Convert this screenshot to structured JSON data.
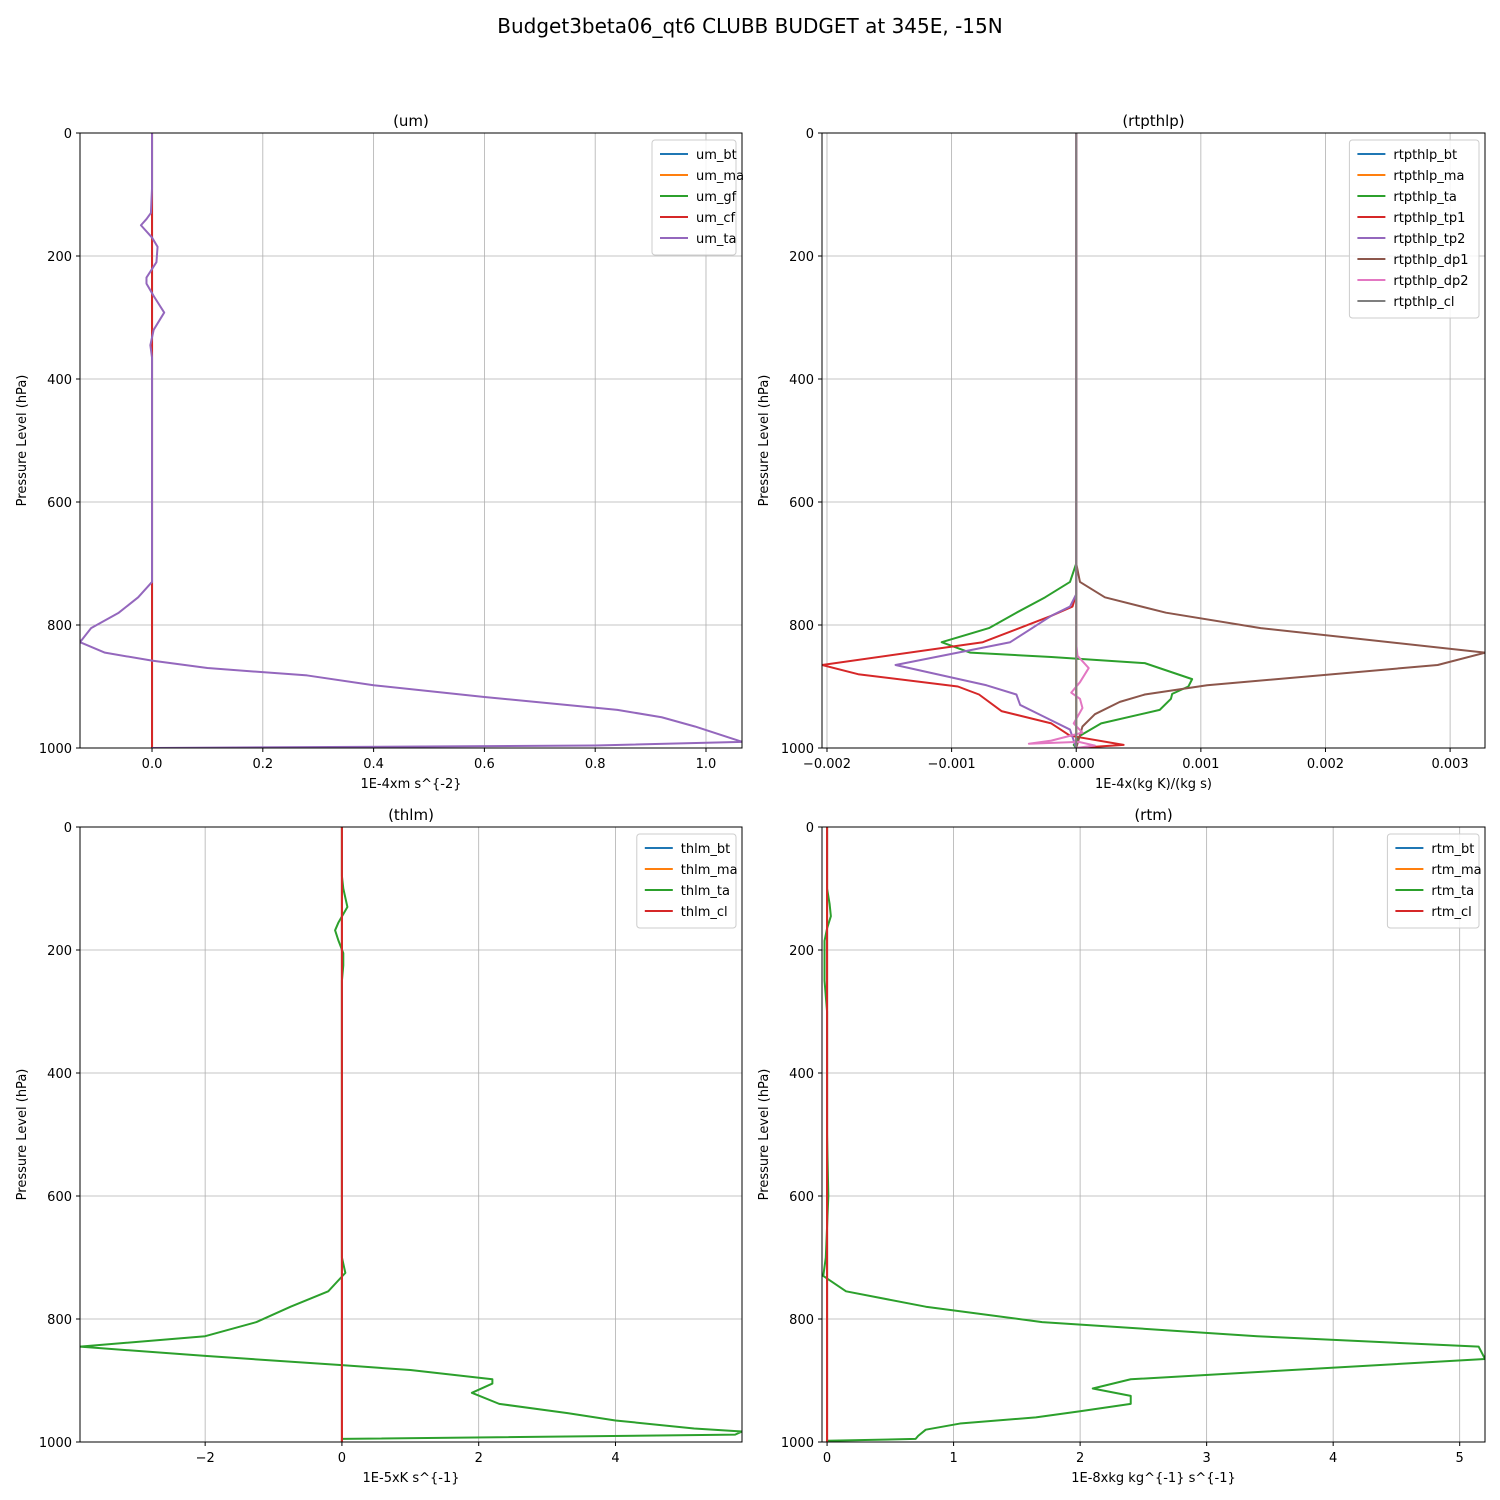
{
  "figure": {
    "title": "Budget3beta06_qt6 CLUBB BUDGET at 345E, -15N"
  },
  "colors": {
    "C0": "#1f77b4",
    "C1": "#ff7f0e",
    "C2": "#2ca02c",
    "C3": "#d62728",
    "C4": "#9467bd",
    "C5": "#8c564b",
    "C6": "#e377c2",
    "C7": "#7f7f7f"
  },
  "chart_data": [
    {
      "type": "line",
      "title": "(um)",
      "xlabel": "1E-4xm s^{-2}",
      "ylabel": "Pressure Level (hPa)",
      "xlim": [
        -0.13,
        1.065
      ],
      "ylim": [
        1000,
        0
      ],
      "y_inverted": true,
      "grid": true,
      "legend": "top-right",
      "xticks": [
        0.0,
        0.2,
        0.4,
        0.6,
        0.8,
        1.0
      ],
      "xtick_labels": [
        "0.0",
        "0.2",
        "0.4",
        "0.6",
        "0.8",
        "1.0"
      ],
      "yticks": [
        0,
        200,
        400,
        600,
        800,
        1000
      ],
      "ytick_labels": [
        "0",
        "200",
        "400",
        "600",
        "800",
        "1000"
      ],
      "series": [
        {
          "name": "um_bt",
          "color": "C0",
          "points": [
            [
              0,
              0
            ],
            [
              0,
              1000
            ]
          ]
        },
        {
          "name": "um_ma",
          "color": "C1",
          "points": [
            [
              0,
              0
            ],
            [
              0,
              1000
            ]
          ]
        },
        {
          "name": "um_gf",
          "color": "C2",
          "points": [
            [
              0,
              0
            ],
            [
              0,
              1000
            ]
          ]
        },
        {
          "name": "um_cf",
          "color": "C3",
          "points": [
            [
              0,
              0
            ],
            [
              0,
              1000
            ]
          ]
        },
        {
          "name": "um_ta",
          "color": "C4",
          "points": [
            [
              0,
              0
            ],
            [
              0,
              90
            ],
            [
              -0.002,
              130
            ],
            [
              -0.01,
              140
            ],
            [
              -0.02,
              150
            ],
            [
              0,
              170
            ],
            [
              0.01,
              185
            ],
            [
              0.008,
              210
            ],
            [
              -0.01,
              235
            ],
            [
              -0.01,
              245
            ],
            [
              0.003,
              265
            ],
            [
              0.022,
              292
            ],
            [
              0.003,
              320
            ],
            [
              -0.003,
              345
            ],
            [
              0,
              365
            ],
            [
              0,
              390
            ],
            [
              0,
              500
            ],
            [
              0,
              600
            ],
            [
              0,
              700
            ],
            [
              0,
              730
            ],
            [
              -0.025,
              755
            ],
            [
              -0.06,
              780
            ],
            [
              -0.11,
              805
            ],
            [
              -0.13,
              828
            ],
            [
              -0.085,
              845
            ],
            [
              0,
              858
            ],
            [
              0.1,
              870
            ],
            [
              0.28,
              882
            ],
            [
              0.4,
              898
            ],
            [
              0.6,
              917
            ],
            [
              0.84,
              938
            ],
            [
              0.92,
              950
            ],
            [
              0.98,
              965
            ],
            [
              1.065,
              990
            ],
            [
              0.8,
              996
            ],
            [
              0,
              1000
            ]
          ]
        }
      ]
    },
    {
      "type": "line",
      "title": "(rtpthlp)",
      "xlabel": "1E-4x(kg K)/(kg s)",
      "ylabel": "Pressure Level (hPa)",
      "xlim": [
        -0.00204,
        0.00328
      ],
      "ylim": [
        1000,
        0
      ],
      "y_inverted": true,
      "grid": true,
      "legend": "top-right",
      "xticks": [
        -0.002,
        -0.001,
        0.0,
        0.001,
        0.002,
        0.003
      ],
      "xtick_labels": [
        "−0.002",
        "−0.001",
        "0.000",
        "0.001",
        "0.002",
        "0.003"
      ],
      "yticks": [
        0,
        200,
        400,
        600,
        800,
        1000
      ],
      "ytick_labels": [
        "0",
        "200",
        "400",
        "600",
        "800",
        "1000"
      ],
      "series": [
        {
          "name": "rtpthlp_bt",
          "color": "C0",
          "points": [
            [
              0,
              0
            ],
            [
              0,
              1000
            ]
          ]
        },
        {
          "name": "rtpthlp_ma",
          "color": "C1",
          "points": [
            [
              0,
              0
            ],
            [
              0,
              1000
            ]
          ]
        },
        {
          "name": "rtpthlp_ta",
          "color": "C2",
          "points": [
            [
              0,
              0
            ],
            [
              0,
              700
            ],
            [
              -5e-05,
              730
            ],
            [
              -0.00025,
              755
            ],
            [
              -0.00048,
              780
            ],
            [
              -0.0007,
              805
            ],
            [
              -0.00108,
              828
            ],
            [
              -0.00085,
              845
            ],
            [
              -0.0002,
              852
            ],
            [
              0.00055,
              862
            ],
            [
              0.00093,
              888
            ],
            [
              0.0009,
              900
            ],
            [
              0.00077,
              912
            ],
            [
              0.00076,
              920
            ],
            [
              0.00067,
              938
            ],
            [
              0.0002,
              960
            ],
            [
              3e-05,
              980
            ],
            [
              -2e-05,
              995
            ],
            [
              0,
              1000
            ]
          ]
        },
        {
          "name": "rtpthlp_tp1",
          "color": "C3",
          "points": [
            [
              0,
              0
            ],
            [
              0,
              750
            ],
            [
              -3e-05,
              770
            ],
            [
              -0.0002,
              785
            ],
            [
              -0.00075,
              828
            ],
            [
              -0.00204,
              865
            ],
            [
              -0.00175,
              880
            ],
            [
              -0.00095,
              900
            ],
            [
              -0.00078,
              913
            ],
            [
              -0.0006,
              940
            ],
            [
              -0.0002,
              960
            ],
            [
              -5e-05,
              980
            ],
            [
              0.00038,
              995
            ],
            [
              0,
              1000
            ]
          ]
        },
        {
          "name": "rtpthlp_tp2",
          "color": "C4",
          "points": [
            [
              0,
              0
            ],
            [
              0,
              750
            ],
            [
              -5e-05,
              770
            ],
            [
              -0.0002,
              785
            ],
            [
              -0.00053,
              828
            ],
            [
              -0.00145,
              865
            ],
            [
              -0.00072,
              898
            ],
            [
              -0.00048,
              913
            ],
            [
              -0.00045,
              930
            ],
            [
              -0.00025,
              950
            ],
            [
              -5e-05,
              970
            ],
            [
              0,
              1000
            ]
          ]
        },
        {
          "name": "rtpthlp_dp1",
          "color": "C5",
          "points": [
            [
              0,
              0
            ],
            [
              0,
              700
            ],
            [
              3e-05,
              730
            ],
            [
              0.00023,
              755
            ],
            [
              0.00072,
              780
            ],
            [
              0.00148,
              805
            ],
            [
              0.00328,
              845
            ],
            [
              0.0029,
              865
            ],
            [
              0.00105,
              898
            ],
            [
              0.00055,
              913
            ],
            [
              0.00035,
              925
            ],
            [
              0.00015,
              945
            ],
            [
              5e-05,
              965
            ],
            [
              0,
              1000
            ]
          ]
        },
        {
          "name": "rtpthlp_dp2",
          "color": "C6",
          "points": [
            [
              0,
              0
            ],
            [
              0,
              830
            ],
            [
              1e-05,
              850
            ],
            [
              0.0001,
              870
            ],
            [
              3e-05,
              893
            ],
            [
              -4e-05,
              910
            ],
            [
              3e-05,
              920
            ],
            [
              5e-05,
              935
            ],
            [
              -2e-05,
              960
            ],
            [
              5e-05,
              975
            ],
            [
              -0.0002,
              988
            ],
            [
              -0.00038,
              993
            ],
            [
              2e-05,
              990
            ],
            [
              0.00015,
              996
            ],
            [
              0,
              1000
            ]
          ]
        },
        {
          "name": "rtpthlp_cl",
          "color": "C7",
          "points": [
            [
              0,
              0
            ],
            [
              0,
              1000
            ]
          ]
        }
      ]
    },
    {
      "type": "line",
      "title": "(thlm)",
      "xlabel": "1E-5xK s^{-1}",
      "ylabel": "Pressure Level (hPa)",
      "xlim": [
        -3.83,
        5.85
      ],
      "ylim": [
        1000,
        0
      ],
      "y_inverted": true,
      "grid": true,
      "legend": "top-right",
      "xticks": [
        -2,
        0,
        2,
        4
      ],
      "xtick_labels": [
        "−2",
        "0",
        "2",
        "4"
      ],
      "yticks": [
        0,
        200,
        400,
        600,
        800,
        1000
      ],
      "ytick_labels": [
        "0",
        "200",
        "400",
        "600",
        "800",
        "1000"
      ],
      "series": [
        {
          "name": "thlm_bt",
          "color": "C0",
          "points": [
            [
              0,
              0
            ],
            [
              0,
              1000
            ]
          ]
        },
        {
          "name": "thlm_ma",
          "color": "C1",
          "points": [
            [
              0,
              0
            ],
            [
              0,
              1000
            ]
          ]
        },
        {
          "name": "thlm_ta",
          "color": "C2",
          "points": [
            [
              0,
              0
            ],
            [
              0,
              80
            ],
            [
              0.02,
              100
            ],
            [
              0.08,
              130
            ],
            [
              -0.05,
              155
            ],
            [
              -0.1,
              168
            ],
            [
              -0.05,
              185
            ],
            [
              0.02,
              205
            ],
            [
              0.02,
              225
            ],
            [
              0,
              250
            ],
            [
              0,
              300
            ],
            [
              0,
              400
            ],
            [
              0,
              500
            ],
            [
              0,
              600
            ],
            [
              0,
              700
            ],
            [
              0.05,
              725
            ],
            [
              -0.2,
              755
            ],
            [
              -0.75,
              780
            ],
            [
              -1.25,
              805
            ],
            [
              -2.0,
              828
            ],
            [
              -3.83,
              845
            ],
            [
              -2.0,
              860
            ],
            [
              0,
              875
            ],
            [
              1.0,
              883
            ],
            [
              2.2,
              898
            ],
            [
              2.2,
              905
            ],
            [
              1.9,
              920
            ],
            [
              2.3,
              938
            ],
            [
              3.3,
              953
            ],
            [
              4.0,
              965
            ],
            [
              5.15,
              978
            ],
            [
              5.85,
              983
            ],
            [
              5.75,
              988
            ],
            [
              0,
              995
            ],
            [
              0,
              1000
            ]
          ]
        },
        {
          "name": "thlm_cl",
          "color": "C3",
          "points": [
            [
              0,
              0
            ],
            [
              0,
              1000
            ]
          ]
        }
      ]
    },
    {
      "type": "line",
      "title": "(rtm)",
      "xlabel": "1E-8xkg kg^{-1} s^{-1}",
      "ylabel": "Pressure Level (hPa)",
      "xlim": [
        -0.04,
        5.2
      ],
      "ylim": [
        1000,
        0
      ],
      "y_inverted": true,
      "grid": true,
      "legend": "top-right",
      "xticks": [
        0,
        1,
        2,
        3,
        4,
        5
      ],
      "xtick_labels": [
        "0",
        "1",
        "2",
        "3",
        "4",
        "5"
      ],
      "yticks": [
        0,
        200,
        400,
        600,
        800,
        1000
      ],
      "ytick_labels": [
        "0",
        "200",
        "400",
        "600",
        "800",
        "1000"
      ],
      "series": [
        {
          "name": "rtm_bt",
          "color": "C0",
          "points": [
            [
              0,
              0
            ],
            [
              0,
              1000
            ]
          ]
        },
        {
          "name": "rtm_ma",
          "color": "C1",
          "points": [
            [
              0,
              0
            ],
            [
              0,
              1000
            ]
          ]
        },
        {
          "name": "rtm_ta",
          "color": "C2",
          "points": [
            [
              0,
              0
            ],
            [
              0,
              100
            ],
            [
              0.02,
              125
            ],
            [
              0.03,
              145
            ],
            [
              0,
              165
            ],
            [
              -0.02,
              185
            ],
            [
              -0.02,
              210
            ],
            [
              -0.02,
              250
            ],
            [
              0,
              300
            ],
            [
              0,
              400
            ],
            [
              0,
              500
            ],
            [
              0.01,
              600
            ],
            [
              0,
              650
            ],
            [
              -0.01,
              700
            ],
            [
              -0.03,
              730
            ],
            [
              0.15,
              755
            ],
            [
              0.78,
              780
            ],
            [
              1.7,
              805
            ],
            [
              3.4,
              828
            ],
            [
              5.15,
              845
            ],
            [
              5.2,
              865
            ],
            [
              2.4,
              898
            ],
            [
              2.1,
              913
            ],
            [
              2.4,
              925
            ],
            [
              2.4,
              938
            ],
            [
              2.0,
              950
            ],
            [
              1.65,
              960
            ],
            [
              1.05,
              970
            ],
            [
              0.78,
              980
            ],
            [
              0.72,
              990
            ],
            [
              0.7,
              995
            ],
            [
              0,
              998
            ]
          ]
        },
        {
          "name": "rtm_cl",
          "color": "C3",
          "points": [
            [
              0,
              0
            ],
            [
              0,
              1000
            ]
          ]
        }
      ]
    }
  ]
}
